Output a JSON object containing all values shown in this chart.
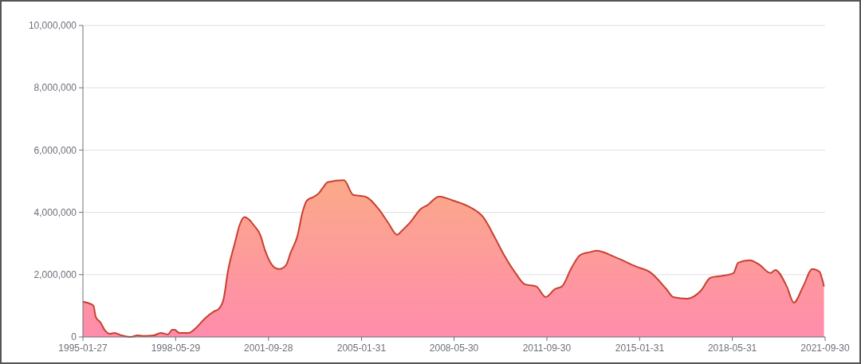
{
  "chart_data": {
    "type": "area",
    "x": [
      "1995-01-27",
      "1995-04",
      "1995-06",
      "1995-07",
      "1995-09",
      "1995-11",
      "1996-01",
      "1996-03",
      "1996-06",
      "1996-10",
      "1997-01",
      "1997-04",
      "1997-08",
      "1997-11",
      "1998-02",
      "1998-04",
      "1998-05",
      "1998-07",
      "1998-11",
      "1999-02",
      "1999-06",
      "1999-10",
      "1999-12",
      "2000-02",
      "2000-04",
      "2000-07",
      "2000-09",
      "2000-11",
      "2001-01",
      "2001-03",
      "2001-06",
      "2001-08",
      "2001-12",
      "2002-02",
      "2002-05",
      "2002-07",
      "2002-10",
      "2002-12",
      "2003-02",
      "2003-05",
      "2003-07",
      "2003-09",
      "2003-11",
      "2004-06",
      "2004-10",
      "2005-03",
      "2005-09",
      "2006-01",
      "2006-05",
      "2006-07",
      "2006-11",
      "2007-03",
      "2007-06",
      "2007-11",
      "2008-05",
      "2008-12",
      "2009-06",
      "2009-11",
      "2010-03",
      "2010-08",
      "2010-12",
      "2011-05",
      "2011-09",
      "2012-01",
      "2012-04",
      "2012-08",
      "2012-12",
      "2013-04",
      "2013-07",
      "2014-03",
      "2014-12",
      "2015-06",
      "2016-01",
      "2016-04",
      "2016-10",
      "2017-04",
      "2017-08",
      "2017-12",
      "2018-06",
      "2018-08",
      "2019-01",
      "2019-05",
      "2019-10",
      "2019-12",
      "2020-05",
      "2020-08",
      "2020-12",
      "2021-04",
      "2021-07",
      "2021-09"
    ],
    "series": [
      {
        "color": "#c8402f",
        "values": [
          1130000,
          1080000,
          1000000,
          640000,
          460000,
          200000,
          100000,
          130000,
          50000,
          0,
          50000,
          30000,
          50000,
          130000,
          80000,
          230000,
          230000,
          130000,
          130000,
          280000,
          590000,
          820000,
          900000,
          1200000,
          2130000,
          3030000,
          3600000,
          3850000,
          3770000,
          3600000,
          3260000,
          2770000,
          2230000,
          2180000,
          2300000,
          2700000,
          3260000,
          3970000,
          4380000,
          4500000,
          4600000,
          4800000,
          4970000,
          5030000,
          4560000,
          4510000,
          4100000,
          3670000,
          3280000,
          3410000,
          3720000,
          4100000,
          4230000,
          4510000,
          4380000,
          4180000,
          3850000,
          3200000,
          2640000,
          2050000,
          1690000,
          1620000,
          1280000,
          1540000,
          1620000,
          2200000,
          2640000,
          2720000,
          2770000,
          2560000,
          2260000,
          2080000,
          1540000,
          1280000,
          1230000,
          1490000,
          1900000,
          1950000,
          2050000,
          2380000,
          2460000,
          2330000,
          2050000,
          2150000,
          1620000,
          1100000,
          1620000,
          2180000,
          2100000,
          1620000
        ]
      }
    ],
    "xlim": [
      "1995-01-27",
      "2021-09-30"
    ],
    "xticks": [
      {
        "value": "1995-01-27",
        "label": "1995-01-27"
      },
      {
        "value": "1998-05-29",
        "label": "1998-05-29"
      },
      {
        "value": "2001-09-28",
        "label": "2001-09-28"
      },
      {
        "value": "2005-01-31",
        "label": "2005-01-31"
      },
      {
        "value": "2008-05-30",
        "label": "2008-05-30"
      },
      {
        "value": "2011-09-30",
        "label": "2011-09-30"
      },
      {
        "value": "2015-01-31",
        "label": "2015-01-31"
      },
      {
        "value": "2018-05-31",
        "label": "2018-05-31"
      },
      {
        "value": "2021-09-30",
        "label": "2021-09-30"
      }
    ],
    "ylim": [
      0,
      10000000
    ],
    "yticks": [
      0,
      {
        "value": 2000000,
        "label": "2,000,000"
      },
      {
        "value": 4000000,
        "label": "4,000,000"
      },
      {
        "value": 6000000,
        "label": "6,000,000"
      },
      {
        "value": 8000000,
        "label": "8,000,000"
      },
      {
        "value": 10000000,
        "label": "10,000,000"
      }
    ],
    "grid": "y"
  }
}
